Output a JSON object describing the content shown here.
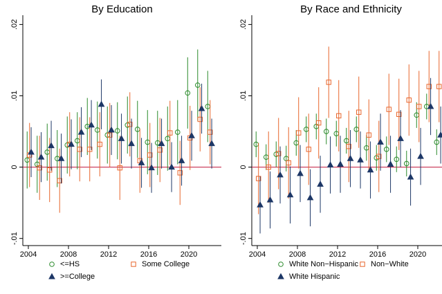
{
  "chart_data": [
    {
      "type": "scatter",
      "title": "By Education",
      "x": [
        2004,
        2005,
        2006,
        2007,
        2008,
        2009,
        2010,
        2011,
        2012,
        2013,
        2014,
        2015,
        2016,
        2017,
        2018,
        2019,
        2020,
        2021,
        2022
      ],
      "xlim": [
        2003.45,
        2023.24
      ],
      "xticks": [
        2004,
        2008,
        2012,
        2016,
        2020
      ],
      "ylim": [
        -0.011,
        0.0213
      ],
      "yticks": [
        {
          "value": -0.01,
          "label": "-.01"
        },
        0,
        {
          "value": 0.01,
          "label": ".01"
        },
        {
          "value": 0.02,
          "label": ".02"
        }
      ],
      "reference_line": {
        "value": 0,
        "color": "#c0143c"
      },
      "series": [
        {
          "name": "<=HS",
          "color": "#2a8a2a",
          "marker": "circle",
          "values": [
            0.001,
            0.0004,
            0.0021,
            0.0012,
            0.0031,
            0.0037,
            0.0057,
            0.0052,
            0.0045,
            0.0051,
            0.0059,
            0.0053,
            0.0035,
            0.0034,
            0.004,
            0.0049,
            0.0104,
            0.0115,
            0.0085
          ],
          "lower": [
            -0.003,
            -0.0036,
            -0.0019,
            -0.0028,
            -0.0009,
            -0.0003,
            0.0017,
            0.0012,
            0.0005,
            0.0011,
            0.0019,
            0.0013,
            -0.001,
            -0.0011,
            -0.0005,
            0.0004,
            0.0054,
            0.0065,
            0.0035
          ],
          "upper": [
            0.005,
            0.0044,
            0.0061,
            0.0052,
            0.0071,
            0.0077,
            0.0097,
            0.0092,
            0.0085,
            0.0091,
            0.0099,
            0.0093,
            0.008,
            0.0079,
            0.0085,
            0.0094,
            0.0154,
            0.0165,
            0.0135
          ]
        },
        {
          "name": "Some College",
          "color": "#e8652b",
          "marker": "square",
          "values": [
            0.0017,
            -0.0001,
            -0.0004,
            -0.0019,
            0.0032,
            0.0025,
            0.0025,
            0.0032,
            0.0045,
            -0.0001,
            0.006,
            0.0009,
            0.0017,
            0.0024,
            0.0048,
            -0.0008,
            0.0041,
            0.0067,
            0.0049
          ],
          "lower": [
            -0.0028,
            -0.0046,
            -0.0049,
            -0.0064,
            -0.0013,
            -0.002,
            -0.002,
            -0.0013,
            0,
            -0.0046,
            0.0015,
            -0.0036,
            -0.0028,
            -0.0021,
            0.0003,
            -0.0053,
            -0.0004,
            0.0022,
            0.0004
          ],
          "upper": [
            0.0062,
            0.0044,
            0.0041,
            0.0026,
            0.0077,
            0.007,
            0.007,
            0.0077,
            0.009,
            0.0044,
            0.0105,
            0.0054,
            0.0062,
            0.0069,
            0.0093,
            0.0037,
            0.0086,
            0.0112,
            0.0094
          ]
        },
        {
          "name": ">=College",
          "color": "#1d3766",
          "marker": "triangle",
          "values": [
            0.0021,
            0.0014,
            0.003,
            0.0012,
            0.0032,
            0.0049,
            0.0059,
            0.0088,
            0.0052,
            0.004,
            0.0033,
            0.0006,
            -0.0001,
            0.0033,
            0,
            0.0009,
            0.0044,
            0.0082,
            0.0033
          ],
          "lower": [
            -0.0014,
            -0.0021,
            -0.0005,
            -0.0023,
            -0.0003,
            0.0014,
            0.0024,
            0.0053,
            0.0017,
            0.0005,
            -0.0002,
            -0.0029,
            -0.0036,
            -0.0002,
            -0.0035,
            -0.0026,
            0.0009,
            0.0047,
            -0.0002
          ],
          "upper": [
            0.0056,
            0.0049,
            0.0065,
            0.0047,
            0.0067,
            0.0084,
            0.0094,
            0.0123,
            0.0087,
            0.0075,
            0.0068,
            0.0041,
            0.0034,
            0.0068,
            0.0035,
            0.0044,
            0.0079,
            0.0117,
            0.0068
          ]
        }
      ]
    },
    {
      "type": "scatter",
      "title": "By Race and Ethnicity",
      "x": [
        2004,
        2005,
        2006,
        2007,
        2008,
        2009,
        2010,
        2011,
        2012,
        2013,
        2014,
        2015,
        2016,
        2017,
        2018,
        2019,
        2020,
        2021,
        2022
      ],
      "xlim": [
        2003.45,
        2023.24
      ],
      "xticks": [
        2004,
        2008,
        2012,
        2016,
        2020
      ],
      "ylim": [
        -0.011,
        0.0213
      ],
      "yticks": [
        {
          "value": -0.01,
          "label": "-.01"
        },
        0,
        {
          "value": 0.01,
          "label": ".01"
        },
        {
          "value": 0.02,
          "label": ".02"
        }
      ],
      "reference_line": {
        "value": 0,
        "color": "#c0143c"
      },
      "series": [
        {
          "name": "White Non−Hispanic",
          "color": "#2a8a2a",
          "marker": "circle",
          "values": [
            0.0032,
            0.0014,
            0.0018,
            0.0012,
            0.0034,
            0.0053,
            0.0057,
            0.005,
            0.0047,
            0.0037,
            0.0053,
            0.0027,
            0.0013,
            0.0025,
            0.0011,
            0.0005,
            0.0073,
            0.0085,
            0.0035
          ],
          "lower": [
            0.0014,
            -0.0004,
            0,
            -0.0006,
            0.0016,
            0.0035,
            0.0039,
            0.0032,
            0.0029,
            0.0019,
            0.0035,
            0.0009,
            -0.0005,
            0.0007,
            -0.0007,
            -0.0013,
            0.0055,
            0.0067,
            0.0017
          ],
          "upper": [
            0.005,
            0.0032,
            0.0036,
            0.003,
            0.0052,
            0.0071,
            0.0075,
            0.0068,
            0.0065,
            0.0055,
            0.0071,
            0.0045,
            0.0031,
            0.0043,
            0.0029,
            0.0023,
            0.0091,
            0.0103,
            0.0053
          ]
        },
        {
          "name": "Non−White",
          "color": "#e8652b",
          "marker": "square",
          "values": [
            -0.0016,
            0,
            0.0019,
            0.0006,
            0.0048,
            0.0025,
            0.0062,
            0.0119,
            0.0072,
            0.0029,
            0.0077,
            0.0045,
            0.0015,
            0.0081,
            0.0074,
            0.0094,
            0.0085,
            0.0113,
            0.0113
          ],
          "lower": [
            -0.0066,
            -0.005,
            -0.0031,
            -0.0044,
            -0.0002,
            -0.0025,
            0.0012,
            0.0069,
            0.0022,
            -0.0021,
            0.0027,
            -0.0005,
            -0.0035,
            0.0031,
            0.0024,
            0.0044,
            0.0035,
            0.0063,
            0.0063
          ],
          "upper": [
            0.0034,
            0.005,
            0.0069,
            0.0056,
            0.0098,
            0.0075,
            0.0112,
            0.0169,
            0.0122,
            0.0079,
            0.0127,
            0.0095,
            0.0065,
            0.0131,
            0.0124,
            0.0144,
            0.0135,
            0.0163,
            0.0163
          ]
        },
        {
          "name": "White Hispanic",
          "color": "#1d3766",
          "marker": "triangle",
          "values": [
            -0.0053,
            -0.0046,
            -0.0011,
            -0.0039,
            -0.0009,
            -0.0043,
            -0.0024,
            0.0003,
            0.0004,
            0.0012,
            0.001,
            -0.0004,
            0.0035,
            0.0004,
            0.004,
            -0.0014,
            0.0015,
            0.0085,
            0.0045
          ],
          "lower": [
            -0.0093,
            -0.0086,
            -0.0051,
            -0.0079,
            -0.0049,
            -0.0083,
            -0.0064,
            -0.0037,
            -0.0036,
            -0.0028,
            -0.003,
            -0.0044,
            -0.0005,
            -0.0036,
            0,
            -0.0054,
            -0.0025,
            0.0045,
            0.0005
          ],
          "upper": [
            -0.0013,
            -0.0006,
            0.0029,
            0.0001,
            0.0031,
            -0.0003,
            0.0016,
            0.0043,
            0.0044,
            0.0052,
            0.005,
            0.0036,
            0.0075,
            0.0044,
            0.008,
            0.0026,
            0.0055,
            0.0125,
            0.0085
          ]
        }
      ]
    }
  ]
}
